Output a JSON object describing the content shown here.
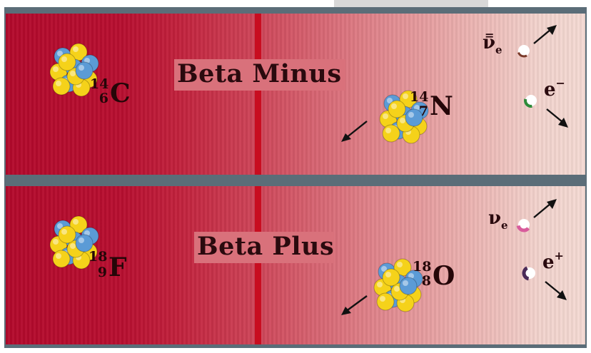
{
  "colors": {
    "proton": "#f5d21a",
    "neutron": "#5b9bd6",
    "electron_ball": "#2e8b3a",
    "positron_ball": "#4a2a57",
    "antineutrino_ball": "#7a3a2a",
    "neutrino_ball": "#d85c9c",
    "divider": "#c80d20",
    "frame": "#5b6d78"
  },
  "beta_minus": {
    "title": "Beta Minus",
    "parent": {
      "mass": "14",
      "number": "6",
      "symbol": "C"
    },
    "daughter": {
      "mass": "14",
      "number": "7",
      "symbol": "N"
    },
    "antineutrino": {
      "symbol": "ν",
      "subscript": "e",
      "bar": "="
    },
    "electron": {
      "symbol": "e",
      "charge": "−"
    }
  },
  "beta_plus": {
    "title": "Beta Plus",
    "parent": {
      "mass": "18",
      "number": "9",
      "symbol": "F"
    },
    "daughter": {
      "mass": "18",
      "number": "8",
      "symbol": "O"
    },
    "neutrino": {
      "symbol": "ν",
      "subscript": "e"
    },
    "positron": {
      "symbol": "e",
      "charge": "+"
    }
  }
}
